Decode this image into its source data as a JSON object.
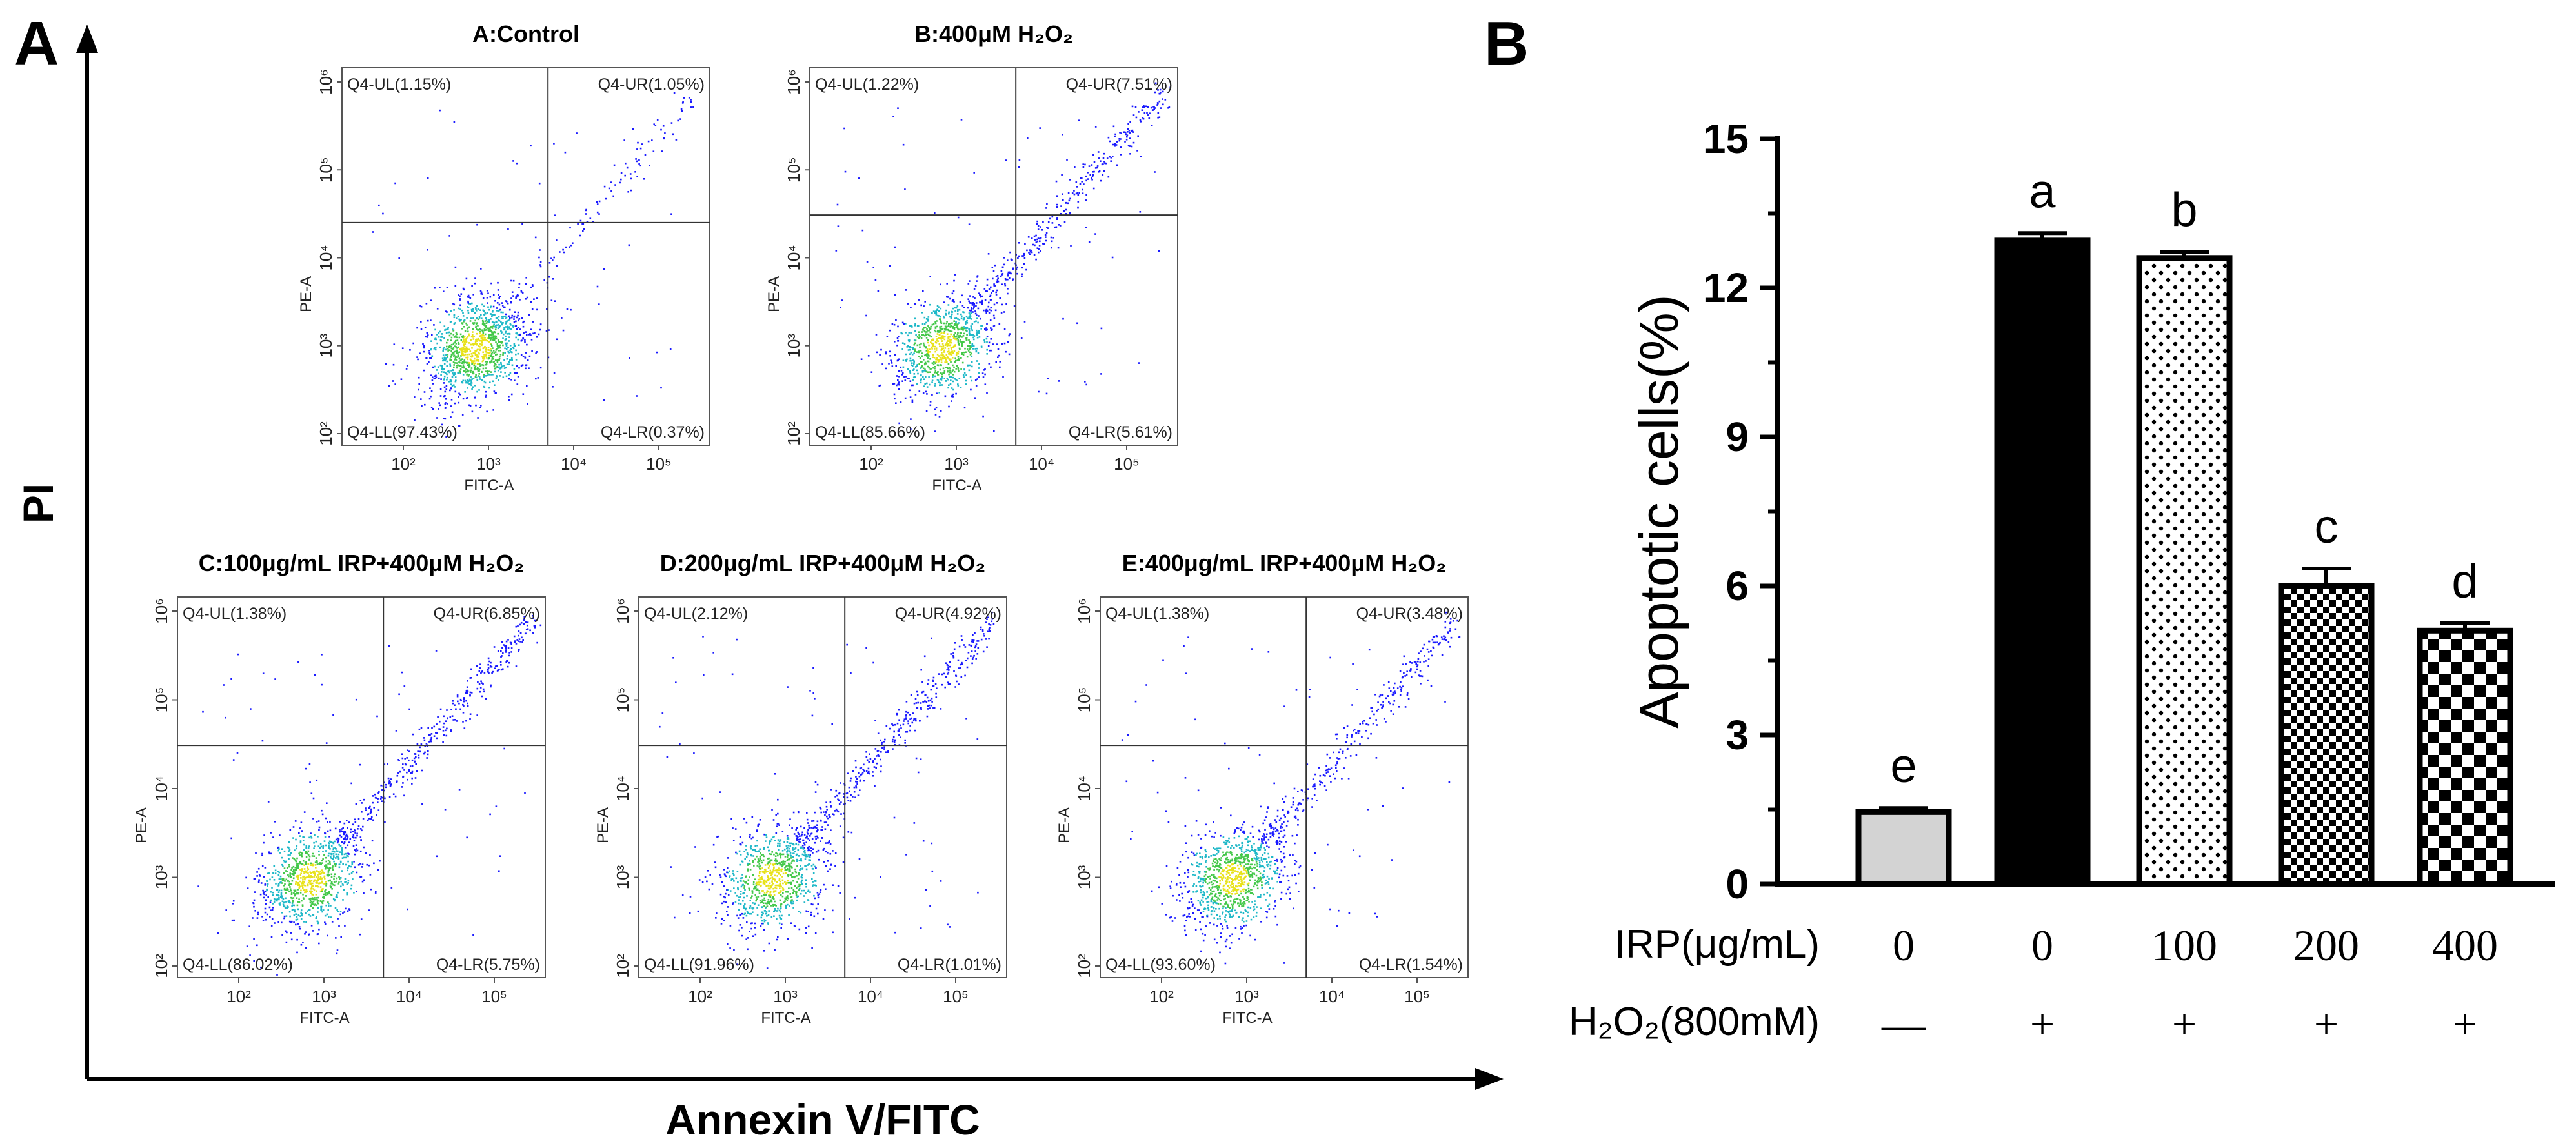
{
  "panelA": {
    "letter": "A",
    "y_title": "PI",
    "x_title": "Annexin V/FITC",
    "plots": [
      {
        "title": "A:Control",
        "ylabel": "PE-A",
        "xlabel": "FITC-A",
        "UL": "Q4-UL(1.15%)",
        "UR": "Q4-UR(1.05%)",
        "LL": "Q4-LL(97.43%)",
        "LR": "Q4-LR(0.37%)"
      },
      {
        "title": "B:400μM H₂O₂",
        "ylabel": "PE-A",
        "xlabel": "FITC-A",
        "UL": "Q4-UL(1.22%)",
        "UR": "Q4-UR(7.51%)",
        "LL": "Q4-LL(85.66%)",
        "LR": "Q4-LR(5.61%)"
      },
      {
        "title": "C:100μg/mL IRP+400μM H₂O₂",
        "ylabel": "PE-A",
        "xlabel": "FITC-A",
        "UL": "Q4-UL(1.38%)",
        "UR": "Q4-UR(6.85%)",
        "LL": "Q4-LL(86.02%)",
        "LR": "Q4-LR(5.75%)"
      },
      {
        "title": "D:200μg/mL IRP+400μM H₂O₂",
        "ylabel": "PE-A",
        "xlabel": "FITC-A",
        "UL": "Q4-UL(2.12%)",
        "UR": "Q4-UR(4.92%)",
        "LL": "Q4-LL(91.96%)",
        "LR": "Q4-LR(1.01%)"
      },
      {
        "title": "E:400μg/mL IRP+400μM H₂O₂",
        "ylabel": "PE-A",
        "xlabel": "FITC-A",
        "UL": "Q4-UL(1.38%)",
        "UR": "Q4-UR(3.48%)",
        "LL": "Q4-LL(93.60%)",
        "LR": "Q4-LR(1.54%)"
      }
    ],
    "y_ticks": [
      "10²",
      "10³",
      "10⁴",
      "10⁵",
      "10⁶"
    ],
    "x_ticks": [
      "10²",
      "10³",
      "10⁴",
      "10⁵"
    ]
  },
  "chart_data": {
    "type": "bar",
    "panel_letter": "B",
    "ylabel": "Apoptotic cells(%)",
    "ylim": [
      0,
      15
    ],
    "yticks": [
      0,
      3,
      6,
      9,
      12,
      15
    ],
    "categories": [
      "0",
      "0",
      "100",
      "200",
      "400"
    ],
    "values": [
      1.45,
      12.95,
      12.6,
      6.0,
      5.1
    ],
    "errors": [
      0.08,
      0.15,
      0.12,
      0.35,
      0.15
    ],
    "significance": [
      "e",
      "a",
      "b",
      "c",
      "d"
    ],
    "patterns": [
      "lightgray",
      "black",
      "dots",
      "small-checker",
      "large-checker"
    ],
    "row1_label": "IRP(μg/mL)",
    "row2_label": "H₂O₂(800mM)",
    "h2o2": [
      "—",
      "+",
      "+",
      "+",
      "+"
    ]
  }
}
